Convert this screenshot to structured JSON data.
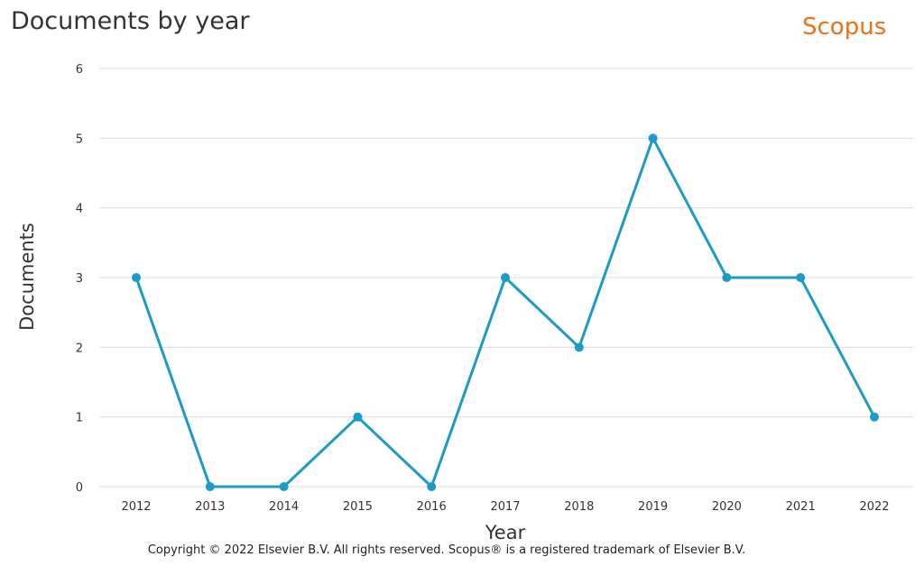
{
  "brand": {
    "name": "Scopus",
    "color": "#e9711c"
  },
  "copyright": "Copyright © 2022 Elsevier B.V. All rights reserved. Scopus® is a registered trademark of Elsevier B.V.",
  "chart_data": {
    "type": "line",
    "title": "Documents by year",
    "xlabel": "Year",
    "ylabel": "Documents",
    "x": [
      "2012",
      "2013",
      "2014",
      "2015",
      "2016",
      "2017",
      "2018",
      "2019",
      "2020",
      "2021",
      "2022"
    ],
    "series": [
      {
        "values": [
          3,
          0,
          0,
          1,
          0,
          3,
          2,
          5,
          3,
          3,
          1
        ],
        "color": "#1a9bc8"
      }
    ],
    "ylim": [
      0,
      6
    ],
    "yticks": [
      "0",
      "1",
      "2",
      "3",
      "4",
      "5",
      "6"
    ],
    "grid": true,
    "legend": "none"
  }
}
